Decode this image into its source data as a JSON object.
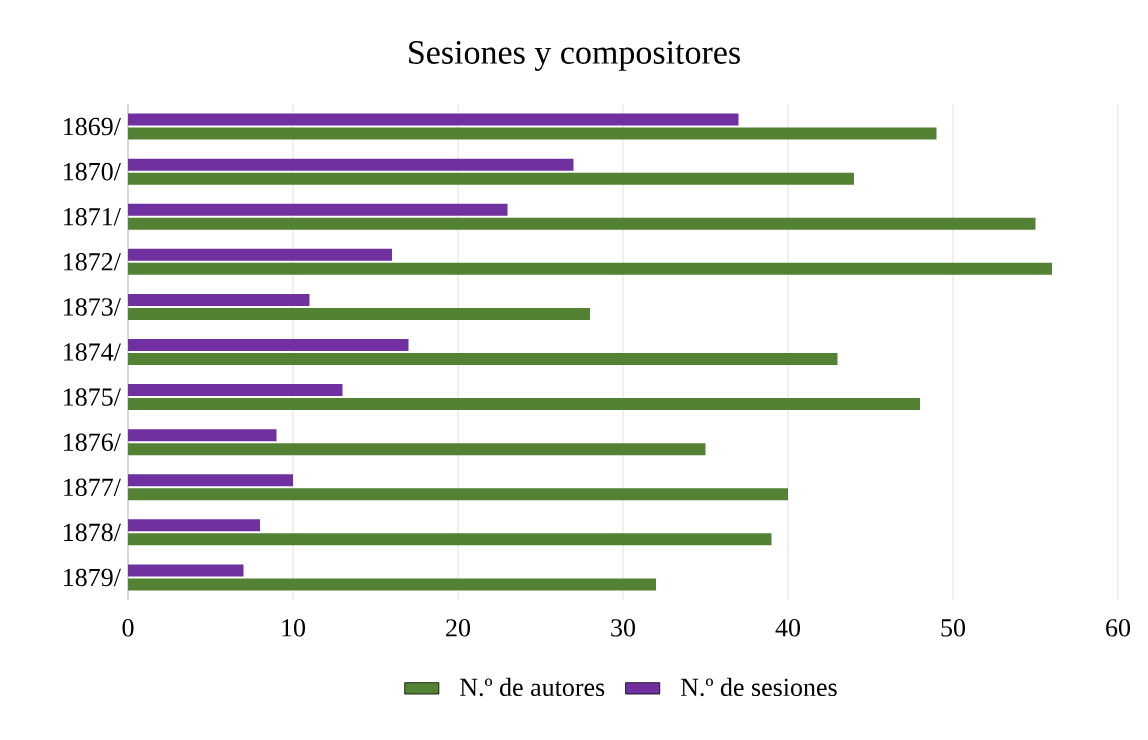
{
  "chart_data": {
    "type": "bar",
    "orientation": "horizontal",
    "title": "Sesiones y compositores",
    "categories": [
      "1869/",
      "1870/",
      "1871/",
      "1872/",
      "1873/",
      "1874/",
      "1875/",
      "1876/",
      "1877/",
      "1878/",
      "1879/"
    ],
    "series": [
      {
        "name": "N.º de autores",
        "color": "#548235",
        "values": [
          49,
          44,
          55,
          56,
          28,
          43,
          48,
          35,
          40,
          39,
          32
        ]
      },
      {
        "name": "N.º de sesiones",
        "color": "#7030a0",
        "values": [
          37,
          27,
          23,
          16,
          11,
          17,
          13,
          9,
          10,
          8,
          7
        ]
      }
    ],
    "xlim": [
      0,
      60
    ],
    "xticks": [
      0,
      10,
      20,
      30,
      40,
      50,
      60
    ],
    "grid": "x",
    "legend": "bottom"
  }
}
